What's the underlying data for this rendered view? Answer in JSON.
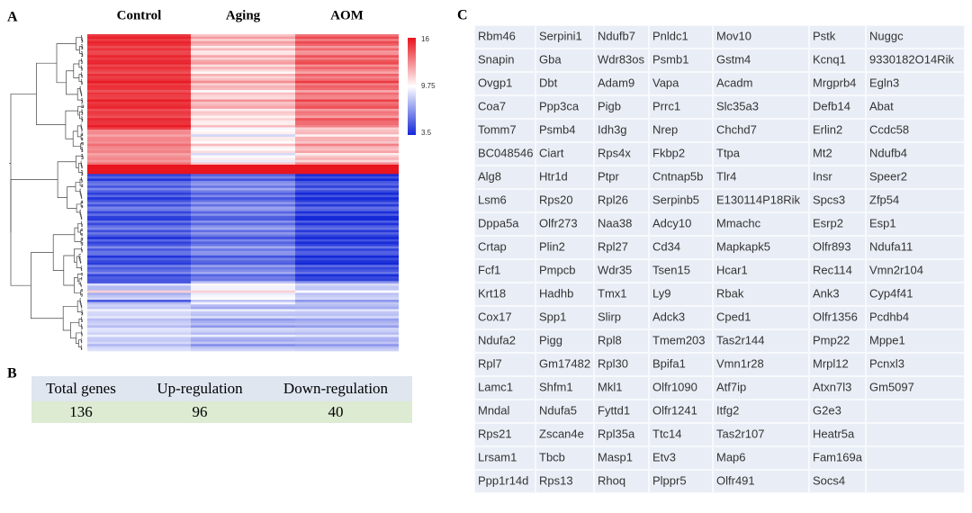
{
  "panels": {
    "A": "A",
    "B": "B",
    "C": "C"
  },
  "heatmap": {
    "columns": [
      "Control",
      "Aging",
      "AOM"
    ],
    "colorbar": {
      "ticks": [
        "16",
        "9.75",
        "3.5"
      ]
    }
  },
  "summary": {
    "headers": [
      "Total genes",
      "Up-regulation",
      "Down-regulation"
    ],
    "values": [
      136,
      96,
      40
    ]
  },
  "genes": {
    "rows": [
      [
        "Rbm46",
        "Serpini1",
        "Ndufb7",
        "Pnldc1",
        "Mov10",
        "Pstk",
        "Nuggc"
      ],
      [
        "Snapin",
        "Gba",
        "Wdr83os",
        "Psmb1",
        "Gstm4",
        "Kcnq1",
        "9330182O14Rik"
      ],
      [
        "Ovgp1",
        "Dbt",
        "Adam9",
        "Vapa",
        "Acadm",
        "Mrgprb4",
        "Egln3"
      ],
      [
        "Coa7",
        "Ppp3ca",
        "Pigb",
        "Prrc1",
        "Slc35a3",
        "Defb14",
        "Abat"
      ],
      [
        "Tomm7",
        "Psmb4",
        "Idh3g",
        "Nrep",
        "Chchd7",
        "Erlin2",
        "Ccdc58"
      ],
      [
        "BC048546",
        "Ciart",
        "Rps4x",
        "Fkbp2",
        "Ttpa",
        "Mt2",
        "Ndufb4"
      ],
      [
        "Alg8",
        "Htr1d",
        "Ptpr",
        "Cntnap5b",
        "Tlr4",
        "Insr",
        "Speer2"
      ],
      [
        "Lsm6",
        "Rps20",
        "Rpl26",
        "Serpinb5",
        "E130114P18Rik",
        "Spcs3",
        "Zfp54"
      ],
      [
        "Dppa5a",
        "Olfr273",
        "Naa38",
        "Adcy10",
        "Mmachc",
        "Esrp2",
        "Esp1"
      ],
      [
        "Crtap",
        "Plin2",
        "Rpl27",
        "Cd34",
        "Mapkapk5",
        "Olfr893",
        "Ndufa11"
      ],
      [
        "Fcf1",
        "Pmpcb",
        "Wdr35",
        "Tsen15",
        "Hcar1",
        "Rec114",
        "Vmn2r104"
      ],
      [
        "Krt18",
        "Hadhb",
        "Tmx1",
        "Ly9",
        "Rbak",
        "Ank3",
        "Cyp4f41"
      ],
      [
        "Cox17",
        "Spp1",
        "Slirp",
        "Adck3",
        "Cped1",
        "Olfr1356",
        "Pcdhb4"
      ],
      [
        "Ndufa2",
        "Pigg",
        "Rpl8",
        "Tmem203",
        "Tas2r144",
        "Pmp22",
        "Mppe1"
      ],
      [
        "Rpl7",
        "Gm17482",
        "Rpl30",
        "Bpifa1",
        "Vmn1r28",
        "Mrpl12",
        "Pcnxl3"
      ],
      [
        "Lamc1",
        "Shfm1",
        "Mkl1",
        "Olfr1090",
        "Atf7ip",
        "Atxn7l3",
        "Gm5097"
      ],
      [
        "Mndal",
        "Ndufa5",
        "Fyttd1",
        "Olfr1241",
        "Itfg2",
        "G2e3"
      ],
      [
        "Rps21",
        "Zscan4e",
        "Rpl35a",
        "Ttc14",
        "Tas2r107",
        "Heatr5a"
      ],
      [
        "Lrsam1",
        "Tbcb",
        "Masp1",
        "Etv3",
        "Map6",
        "Fam169a"
      ],
      [
        "Ppp1r14d",
        "Rps13",
        "Rhoq",
        "Plppr5",
        "Olfr491",
        "Socs4"
      ]
    ]
  }
}
